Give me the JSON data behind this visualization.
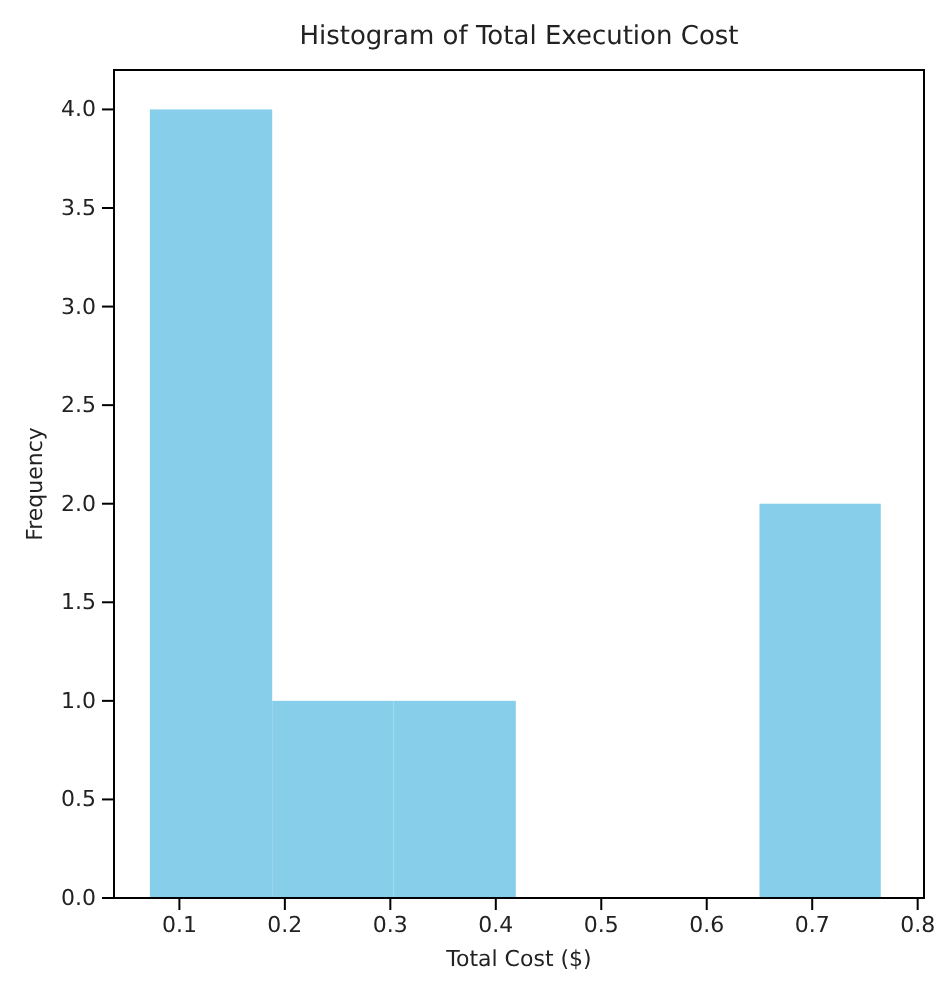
{
  "chart_data": {
    "type": "histogram",
    "title": "Histogram of Total Execution Cost",
    "xlabel": "Total Cost ($)",
    "ylabel": "Frequency",
    "bins": [
      0.072,
      0.188,
      0.303,
      0.419,
      0.65,
      0.765
    ],
    "values": [
      4,
      1,
      1,
      0,
      2
    ],
    "color": "#87ceeb",
    "xlim": [
      0.038,
      0.806
    ],
    "xticks": [
      {
        "value": 0.1,
        "label": "0.1"
      },
      {
        "value": 0.2,
        "label": "0.2"
      },
      {
        "value": 0.3,
        "label": "0.3"
      },
      {
        "value": 0.4,
        "label": "0.4"
      },
      {
        "value": 0.5,
        "label": "0.5"
      },
      {
        "value": 0.6,
        "label": "0.6"
      },
      {
        "value": 0.7,
        "label": "0.7"
      },
      {
        "value": 0.8,
        "label": "0.8"
      }
    ],
    "ylim": [
      0,
      4.2
    ],
    "yticks": [
      {
        "value": 0,
        "label": "0.0"
      },
      {
        "value": 0.5,
        "label": "0.5"
      },
      {
        "value": 1,
        "label": "1.0"
      },
      {
        "value": 1.5,
        "label": "1.5"
      },
      {
        "value": 2,
        "label": "2.0"
      },
      {
        "value": 2.5,
        "label": "2.5"
      },
      {
        "value": 3,
        "label": "3.0"
      },
      {
        "value": 3.5,
        "label": "3.5"
      },
      {
        "value": 4,
        "label": "4.0"
      }
    ]
  }
}
